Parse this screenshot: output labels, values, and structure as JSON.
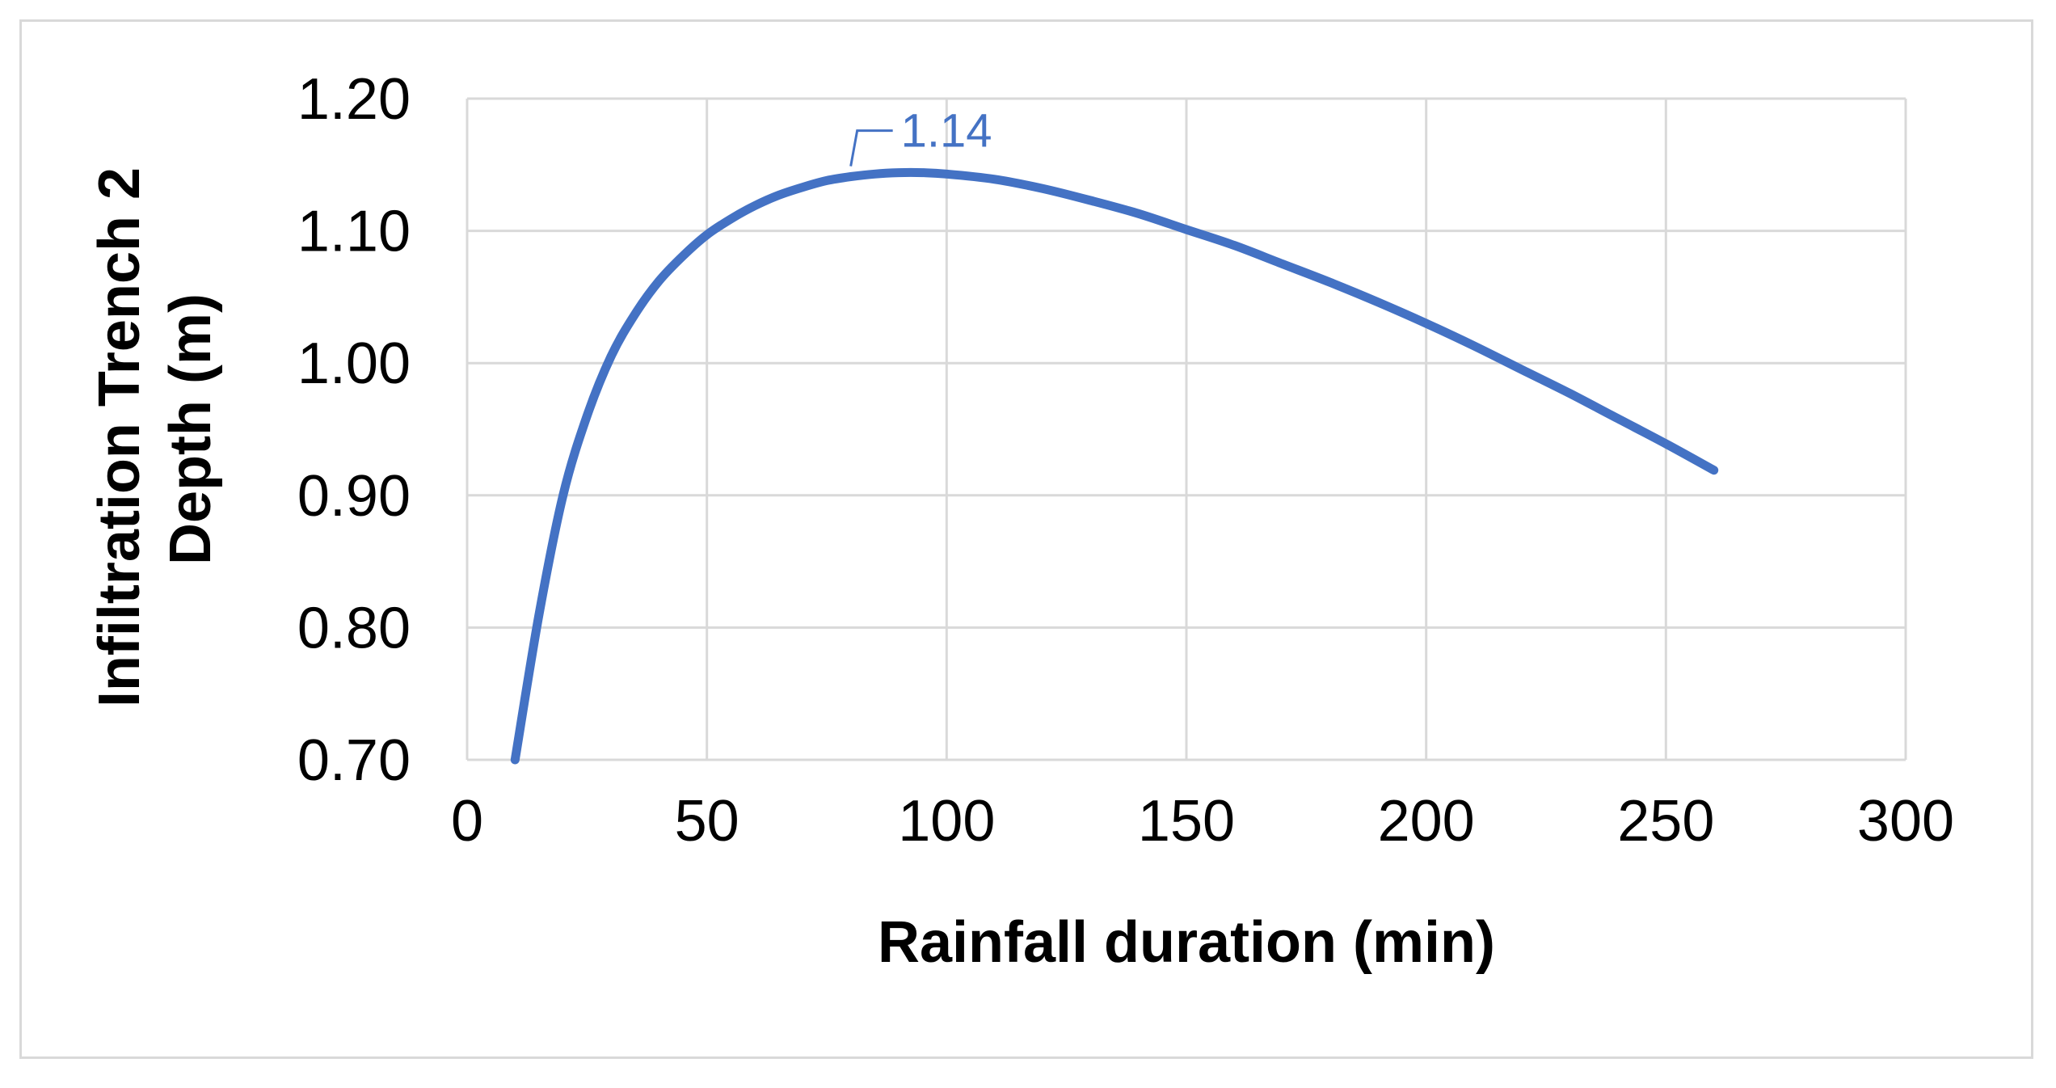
{
  "chart_data": {
    "type": "line",
    "title": "",
    "xlabel": "Rainfall duration (min)",
    "ylabel_lines": [
      "Infiltration Trench 2",
      "Depth (m)"
    ],
    "xlim": [
      0,
      300
    ],
    "ylim": [
      0.7,
      1.2
    ],
    "xticks": [
      0,
      50,
      100,
      150,
      200,
      250,
      300
    ],
    "xtick_labels": [
      "0",
      "50",
      "100",
      "150",
      "200",
      "250",
      "300"
    ],
    "yticks": [
      0.7,
      0.8,
      0.9,
      1.0,
      1.1,
      1.2
    ],
    "ytick_labels": [
      "0.70",
      "0.80",
      "0.90",
      "1.00",
      "1.10",
      "1.20"
    ],
    "grid": true,
    "legend": "none",
    "series": [
      {
        "color": "#4472c4",
        "x": [
          10,
          15,
          20,
          25,
          30,
          35,
          40,
          45,
          50,
          55,
          60,
          65,
          70,
          75,
          80,
          85,
          90,
          95,
          100,
          110,
          120,
          130,
          140,
          150,
          160,
          170,
          180,
          190,
          200,
          210,
          220,
          230,
          240,
          250,
          260
        ],
        "y": [
          0.7,
          0.81,
          0.9,
          0.96,
          1.005,
          1.037,
          1.062,
          1.081,
          1.097,
          1.109,
          1.119,
          1.127,
          1.133,
          1.138,
          1.141,
          1.143,
          1.144,
          1.144,
          1.143,
          1.139,
          1.132,
          1.123,
          1.113,
          1.101,
          1.089,
          1.075,
          1.061,
          1.046,
          1.03,
          1.013,
          0.995,
          0.977,
          0.958,
          0.939,
          0.919
        ]
      }
    ],
    "annotations": [
      {
        "text": "1.14",
        "x": 80,
        "y": 1.144,
        "color": "#4472c4"
      }
    ]
  }
}
